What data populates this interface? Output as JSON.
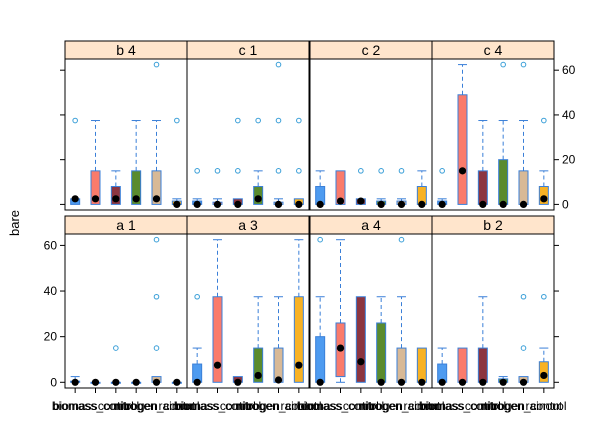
{
  "chart_data": {
    "type": "box",
    "ylabel": "bare",
    "ylim": [
      -2.5,
      65
    ],
    "y_ticks": [
      0,
      20,
      40,
      60
    ],
    "categories": [
      "biomass",
      "biomass_control",
      "control",
      "nitrogen",
      "nitrogen_control",
      "rainout"
    ],
    "x_tick_labels": [
      "biomass",
      "biomass_control",
      "control",
      "nitrogen",
      "nitrogen_control",
      "rainout"
    ],
    "category_colors": [
      "#4E9BF0",
      "#FA7B6B",
      "#8C3540",
      "#5A8B2E",
      "#D8B996",
      "#F8B224"
    ],
    "box_outline_color": "#3A7FD8",
    "outlier_color": "#3A9FD8",
    "strip_fill": "#FFE5CC",
    "layout": {
      "columns": 4,
      "rows": 2
    },
    "panels": [
      {
        "label": "a 1",
        "boxes": [
          {
            "q1": 0,
            "median": 0,
            "q3": 0.5,
            "whisker_low": 0,
            "whisker_high": 2.5,
            "outliers": []
          },
          {
            "q1": 0,
            "median": 0,
            "q3": 0,
            "whisker_low": 0,
            "whisker_high": 0,
            "outliers": []
          },
          {
            "q1": 0,
            "median": 0,
            "q3": 0,
            "whisker_low": 0,
            "whisker_high": 0,
            "outliers": [
              15
            ]
          },
          {
            "q1": 0,
            "median": 0,
            "q3": 0,
            "whisker_low": 0,
            "whisker_high": 0,
            "outliers": []
          },
          {
            "q1": 0,
            "median": 0,
            "q3": 2.5,
            "whisker_low": 0,
            "whisker_high": 2.5,
            "outliers": [
              15,
              37.5,
              62.5
            ]
          },
          {
            "q1": 0,
            "median": 0,
            "q3": 0,
            "whisker_low": 0,
            "whisker_high": 0,
            "outliers": []
          }
        ]
      },
      {
        "label": "a 3",
        "boxes": [
          {
            "q1": 0,
            "median": 0,
            "q3": 8,
            "whisker_low": 0,
            "whisker_high": 15,
            "outliers": [
              37.5
            ]
          },
          {
            "q1": 0,
            "median": 7.5,
            "q3": 37.5,
            "whisker_low": 0,
            "whisker_high": 62.5,
            "outliers": []
          },
          {
            "q1": 0,
            "median": 0,
            "q3": 2.5,
            "whisker_low": 0,
            "whisker_high": 2.5,
            "outliers": []
          },
          {
            "q1": 0,
            "median": 3,
            "q3": 15,
            "whisker_low": 0,
            "whisker_high": 37.5,
            "outliers": []
          },
          {
            "q1": 0,
            "median": 1,
            "q3": 15,
            "whisker_low": 0,
            "whisker_high": 37.5,
            "outliers": []
          },
          {
            "q1": 0,
            "median": 7.5,
            "q3": 37.5,
            "whisker_low": 0,
            "whisker_high": 62.5,
            "outliers": []
          }
        ]
      },
      {
        "label": "a 4",
        "boxes": [
          {
            "q1": 0,
            "median": 0,
            "q3": 20,
            "whisker_low": 0,
            "whisker_high": 37.5,
            "outliers": [
              62.5
            ]
          },
          {
            "q1": 2.5,
            "median": 15,
            "q3": 26,
            "whisker_low": 0,
            "whisker_high": 62.5,
            "outliers": []
          },
          {
            "q1": 0,
            "median": 9,
            "q3": 37.5,
            "whisker_low": 0,
            "whisker_high": 37.5,
            "outliers": []
          },
          {
            "q1": 0,
            "median": 0,
            "q3": 26,
            "whisker_low": 0,
            "whisker_high": 37.5,
            "outliers": []
          },
          {
            "q1": 0,
            "median": 0,
            "q3": 15,
            "whisker_low": 0,
            "whisker_high": 37.5,
            "outliers": [
              62.5
            ]
          },
          {
            "q1": 0,
            "median": 0,
            "q3": 15,
            "whisker_low": 0,
            "whisker_high": 15,
            "outliers": []
          }
        ]
      },
      {
        "label": "b 2",
        "boxes": [
          {
            "q1": 0,
            "median": 0,
            "q3": 8,
            "whisker_low": 0,
            "whisker_high": 15,
            "outliers": []
          },
          {
            "q1": 0,
            "median": 0,
            "q3": 15,
            "whisker_low": 0,
            "whisker_high": 15,
            "outliers": []
          },
          {
            "q1": 0,
            "median": 0,
            "q3": 15,
            "whisker_low": 0,
            "whisker_high": 37.5,
            "outliers": []
          },
          {
            "q1": 0,
            "median": 0,
            "q3": 1.5,
            "whisker_low": 0,
            "whisker_high": 2.5,
            "outliers": []
          },
          {
            "q1": 0,
            "median": 0,
            "q3": 2.5,
            "whisker_low": 0,
            "whisker_high": 2.5,
            "outliers": [
              15,
              37.5
            ]
          },
          {
            "q1": 0,
            "median": 3,
            "q3": 9,
            "whisker_low": 0,
            "whisker_high": 15,
            "outliers": [
              37.5
            ]
          }
        ]
      },
      {
        "label": "b 4",
        "boxes": [
          {
            "q1": 0,
            "median": 2.5,
            "q3": 2.5,
            "whisker_low": 0,
            "whisker_high": 2.5,
            "outliers": [
              37.5
            ]
          },
          {
            "q1": 0,
            "median": 2.5,
            "q3": 15,
            "whisker_low": 0,
            "whisker_high": 37.5,
            "outliers": []
          },
          {
            "q1": 0,
            "median": 2.5,
            "q3": 8,
            "whisker_low": 0,
            "whisker_high": 15,
            "outliers": []
          },
          {
            "q1": 0,
            "median": 2.5,
            "q3": 15,
            "whisker_low": 0,
            "whisker_high": 37.5,
            "outliers": []
          },
          {
            "q1": 0,
            "median": 2.5,
            "q3": 15,
            "whisker_low": 0,
            "whisker_high": 37.5,
            "outliers": [
              62.5
            ]
          },
          {
            "q1": 0,
            "median": 0,
            "q3": 1.5,
            "whisker_low": 0,
            "whisker_high": 2.5,
            "outliers": [
              37.5
            ]
          }
        ]
      },
      {
        "label": "c 1",
        "boxes": [
          {
            "q1": 0,
            "median": 0,
            "q3": 1.5,
            "whisker_low": 0,
            "whisker_high": 2.5,
            "outliers": [
              15
            ]
          },
          {
            "q1": 0,
            "median": 0,
            "q3": 1,
            "whisker_low": 0,
            "whisker_high": 2.5,
            "outliers": [
              15
            ]
          },
          {
            "q1": 0,
            "median": 0,
            "q3": 2.5,
            "whisker_low": 0,
            "whisker_high": 2.5,
            "outliers": [
              15,
              37.5
            ]
          },
          {
            "q1": 0,
            "median": 2.5,
            "q3": 8,
            "whisker_low": 0,
            "whisker_high": 15,
            "outliers": [
              37.5
            ]
          },
          {
            "q1": 0,
            "median": 0,
            "q3": 1,
            "whisker_low": 0,
            "whisker_high": 2.5,
            "outliers": [
              15,
              37.5,
              62.5
            ]
          },
          {
            "q1": 0,
            "median": 0,
            "q3": 2.5,
            "whisker_low": 0,
            "whisker_high": 2.5,
            "outliers": [
              15,
              37.5
            ]
          }
        ]
      },
      {
        "label": "c 2",
        "boxes": [
          {
            "q1": 0,
            "median": 0,
            "q3": 8,
            "whisker_low": 0,
            "whisker_high": 15,
            "outliers": []
          },
          {
            "q1": 0,
            "median": 1.5,
            "q3": 15,
            "whisker_low": 0,
            "whisker_high": 15,
            "outliers": []
          },
          {
            "q1": 0,
            "median": 1.5,
            "q3": 2.5,
            "whisker_low": 0,
            "whisker_high": 2.5,
            "outliers": [
              15
            ]
          },
          {
            "q1": 0,
            "median": 0,
            "q3": 1.5,
            "whisker_low": 0,
            "whisker_high": 2.5,
            "outliers": [
              15
            ]
          },
          {
            "q1": 0,
            "median": 0,
            "q3": 1.5,
            "whisker_low": 0,
            "whisker_high": 2.5,
            "outliers": [
              15
            ]
          },
          {
            "q1": 0,
            "median": 0,
            "q3": 8,
            "whisker_low": 0,
            "whisker_high": 15,
            "outliers": []
          }
        ]
      },
      {
        "label": "c 4",
        "boxes": [
          {
            "q1": 0,
            "median": 0,
            "q3": 1.5,
            "whisker_low": 0,
            "whisker_high": 2.5,
            "outliers": [
              15
            ]
          },
          {
            "q1": 0,
            "median": 15,
            "q3": 49,
            "whisker_low": 0,
            "whisker_high": 62.5,
            "outliers": []
          },
          {
            "q1": 0,
            "median": 0,
            "q3": 15,
            "whisker_low": 0,
            "whisker_high": 37.5,
            "outliers": []
          },
          {
            "q1": 0,
            "median": 0,
            "q3": 20,
            "whisker_low": 0,
            "whisker_high": 37.5,
            "outliers": [
              62.5
            ]
          },
          {
            "q1": 0,
            "median": 0,
            "q3": 15,
            "whisker_low": 0,
            "whisker_high": 37.5,
            "outliers": [
              62.5
            ]
          },
          {
            "q1": 0,
            "median": 2.5,
            "q3": 8,
            "whisker_low": 0,
            "whisker_high": 15,
            "outliers": [
              37.5
            ]
          }
        ]
      }
    ]
  }
}
